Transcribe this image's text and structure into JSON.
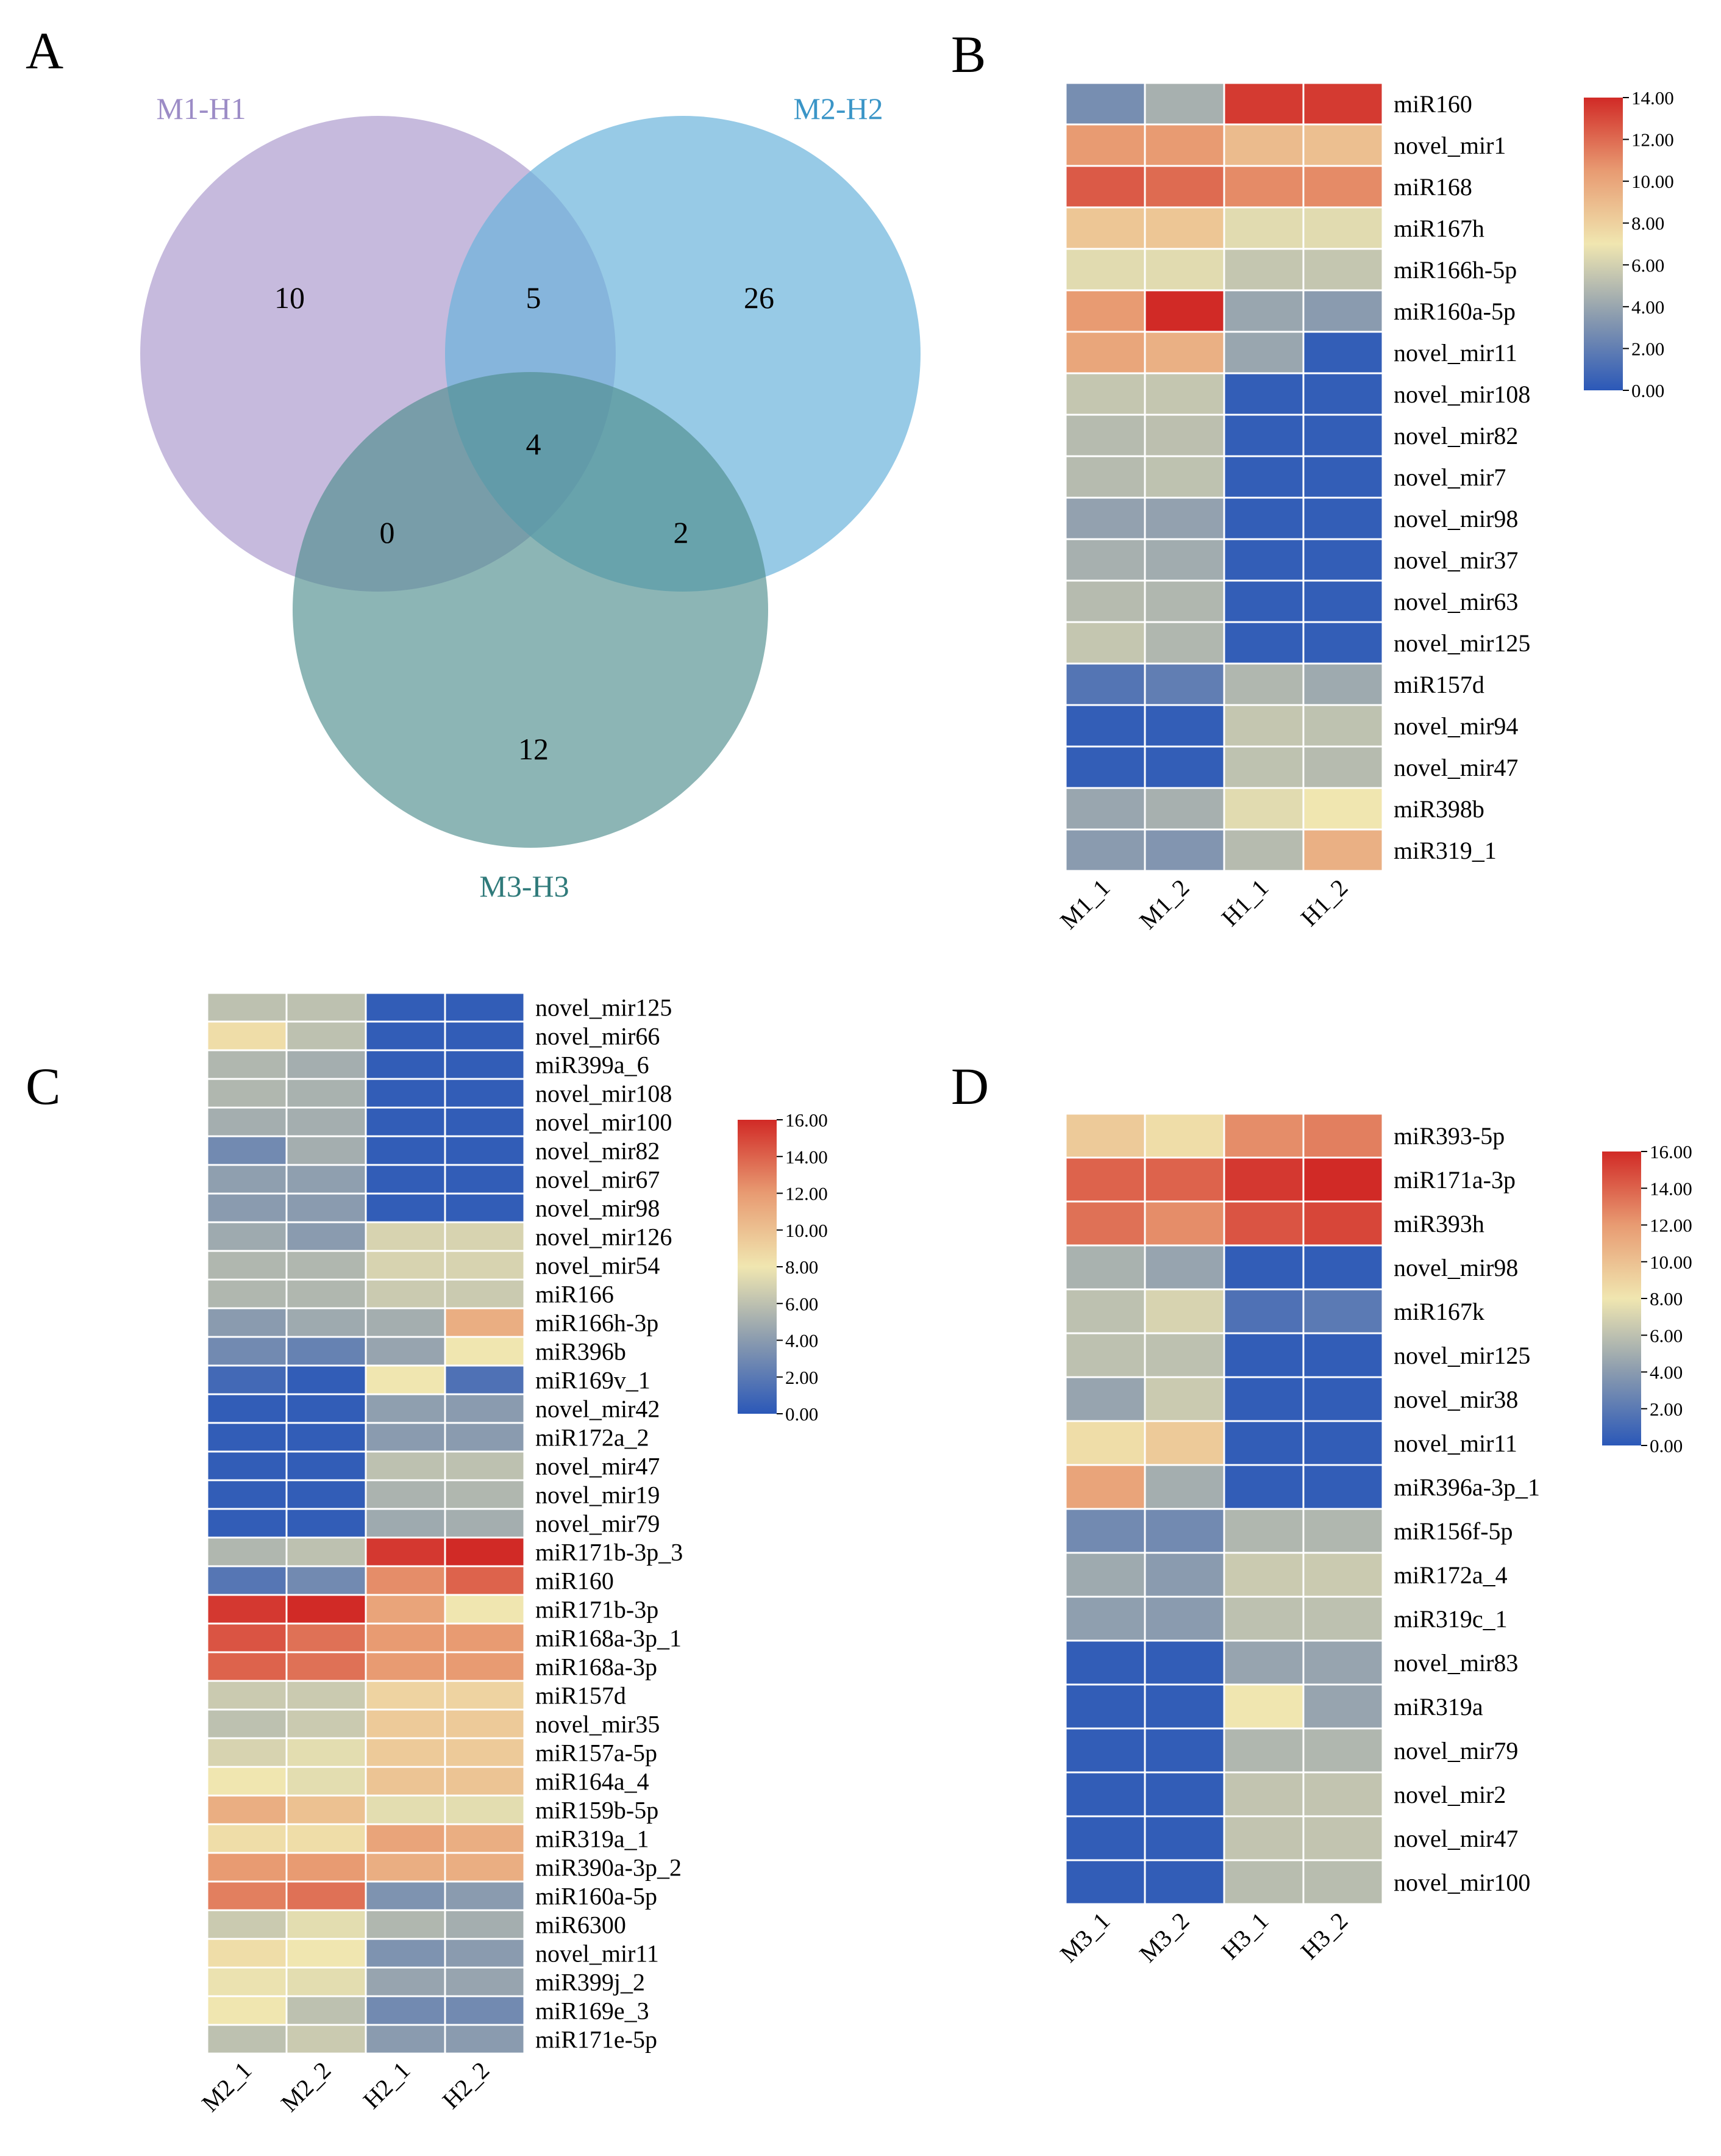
{
  "chart_data": [
    {
      "panel": "A",
      "type": "venn",
      "sets": [
        {
          "name": "M1-H1",
          "color": "#B3A3D1",
          "label_color": "#9C8CC6"
        },
        {
          "name": "M2-H2",
          "color": "#6BB3DC",
          "label_color": "#3A95C7"
        },
        {
          "name": "M3-H3",
          "color": "#4E8D8E",
          "label_color": "#2F7A7A"
        }
      ],
      "regions": {
        "only_1": 10,
        "only_2": 26,
        "only_3": 12,
        "1_2": 5,
        "1_3": 0,
        "2_3": 2,
        "1_2_3": 4
      }
    },
    {
      "panel": "B",
      "type": "heatmap",
      "columns": [
        "M1_1",
        "M1_2",
        "H1_1",
        "H1_2"
      ],
      "rows": [
        "miR160",
        "novel_mir1",
        "miR168",
        "miR167h",
        "miR166h-5p",
        "miR160a-5p",
        "novel_mir11",
        "novel_mir108",
        "novel_mir82",
        "novel_mir7",
        "novel_mir98",
        "novel_mir37",
        "novel_mir63",
        "novel_mir125",
        "miR157d",
        "novel_mir94",
        "novel_mir47",
        "miR398b",
        "miR319_1"
      ],
      "values": [
        [
          2.8,
          4.5,
          13.5,
          13.5
        ],
        [
          10.5,
          10.5,
          9.0,
          8.8
        ],
        [
          12.5,
          12.0,
          11.0,
          11.0
        ],
        [
          8.5,
          8.5,
          6.5,
          6.5
        ],
        [
          6.5,
          6.5,
          5.5,
          5.5
        ],
        [
          10.5,
          14.0,
          4.0,
          3.5
        ],
        [
          10.0,
          9.5,
          4.0,
          0.3
        ],
        [
          5.5,
          5.5,
          0.3,
          0.3
        ],
        [
          5.0,
          5.2,
          0.3,
          0.3
        ],
        [
          5.0,
          5.3,
          0.3,
          0.3
        ],
        [
          3.8,
          3.8,
          0.3,
          0.3
        ],
        [
          4.5,
          4.3,
          0.3,
          0.3
        ],
        [
          5.0,
          4.8,
          0.3,
          0.3
        ],
        [
          5.5,
          4.8,
          0.3,
          0.3
        ],
        [
          1.5,
          2.0,
          4.8,
          4.2
        ],
        [
          0.3,
          0.3,
          5.5,
          5.3
        ],
        [
          0.3,
          0.3,
          5.3,
          5.0
        ],
        [
          4.0,
          4.5,
          6.5,
          7.0
        ],
        [
          3.5,
          3.2,
          5.0,
          9.5
        ]
      ],
      "colorbar": {
        "min": 0,
        "max": 14,
        "ticks": [
          "0.00",
          "2.00",
          "4.00",
          "6.00",
          "8.00",
          "10.00",
          "12.00",
          "14.00"
        ]
      }
    },
    {
      "panel": "C",
      "type": "heatmap",
      "columns": [
        "M2_1",
        "M2_2",
        "H2_1",
        "H2_2"
      ],
      "rows": [
        "novel_mir125",
        "novel_mir66",
        "miR399a_6",
        "novel_mir108",
        "novel_mir100",
        "novel_mir82",
        "novel_mir67",
        "novel_mir98",
        "novel_mir126",
        "novel_mir54",
        "miR166",
        "miR166h-3p",
        "miR396b",
        "miR169v_1",
        "novel_mir42",
        "miR172a_2",
        "novel_mir47",
        "novel_mir19",
        "novel_mir79",
        "miR171b-3p_3",
        "miR160",
        "miR171b-3p",
        "miR168a-3p_1",
        "miR168a-3p",
        "miR157d",
        "novel_mir35",
        "miR157a-5p",
        "miR164a_4",
        "miR159b-5p",
        "miR319a_1",
        "miR390a-3p_2",
        "miR160a-5p",
        "miR6300",
        "novel_mir11",
        "miR399j_2",
        "miR169e_3",
        "miR171e-5p"
      ],
      "values": [
        [
          6.0,
          6.0,
          0.3,
          0.3
        ],
        [
          8.5,
          6.0,
          0.3,
          0.3
        ],
        [
          5.5,
          5.0,
          0.3,
          0.3
        ],
        [
          5.5,
          5.2,
          0.3,
          0.3
        ],
        [
          5.0,
          5.0,
          0.3,
          0.3
        ],
        [
          3.0,
          5.0,
          0.3,
          0.3
        ],
        [
          4.2,
          4.2,
          0.3,
          0.3
        ],
        [
          4.0,
          4.0,
          0.3,
          0.3
        ],
        [
          4.8,
          4.0,
          7.0,
          7.0
        ],
        [
          5.5,
          5.5,
          7.0,
          7.0
        ],
        [
          5.5,
          5.5,
          6.5,
          6.5
        ],
        [
          4.0,
          4.8,
          5.0,
          11.0
        ],
        [
          3.0,
          2.5,
          4.5,
          8.0
        ],
        [
          1.0,
          0.3,
          8.0,
          1.5
        ],
        [
          0.3,
          0.3,
          4.2,
          4.0
        ],
        [
          0.3,
          0.3,
          4.0,
          4.0
        ],
        [
          0.3,
          0.3,
          6.0,
          6.0
        ],
        [
          0.3,
          0.3,
          5.3,
          5.5
        ],
        [
          0.3,
          0.3,
          4.8,
          5.0
        ],
        [
          5.5,
          6.0,
          15.5,
          16.0
        ],
        [
          1.8,
          3.0,
          12.5,
          14.0
        ],
        [
          15.5,
          16.0,
          11.5,
          8.0
        ],
        [
          14.5,
          13.5,
          12.0,
          12.0
        ],
        [
          14.0,
          13.5,
          12.0,
          12.0
        ],
        [
          6.5,
          6.5,
          9.0,
          9.0
        ],
        [
          6.0,
          6.5,
          9.5,
          9.5
        ],
        [
          7.0,
          7.5,
          9.5,
          9.5
        ],
        [
          8.0,
          7.5,
          9.8,
          9.8
        ],
        [
          11.0,
          10.0,
          7.5,
          7.5
        ],
        [
          8.5,
          8.5,
          11.5,
          11.0
        ],
        [
          12.0,
          12.0,
          11.0,
          11.0
        ],
        [
          13.0,
          13.5,
          3.5,
          4.0
        ],
        [
          6.5,
          7.5,
          5.5,
          5.0
        ],
        [
          8.5,
          8.0,
          3.5,
          4.0
        ],
        [
          7.8,
          7.5,
          4.5,
          4.5
        ],
        [
          8.0,
          6.0,
          3.0,
          3.0
        ],
        [
          6.0,
          6.5,
          4.0,
          4.0
        ]
      ],
      "colorbar": {
        "min": 0,
        "max": 16,
        "ticks": [
          "0.00",
          "2.00",
          "4.00",
          "6.00",
          "8.00",
          "10.00",
          "12.00",
          "14.00",
          "16.00"
        ]
      }
    },
    {
      "panel": "D",
      "type": "heatmap",
      "columns": [
        "M3_1",
        "M3_2",
        "H3_1",
        "H3_2"
      ],
      "rows": [
        "miR393-5p",
        "miR171a-3p",
        "miR393h",
        "novel_mir98",
        "miR167k",
        "novel_mir125",
        "novel_mir38",
        "novel_mir11",
        "miR396a-3p_1",
        "miR156f-5p",
        "miR172a_4",
        "miR319c_1",
        "novel_mir83",
        "miR319a",
        "novel_mir79",
        "novel_mir2",
        "novel_mir47",
        "novel_mir100"
      ],
      "values": [
        [
          9.5,
          8.5,
          12.5,
          13.0
        ],
        [
          14.0,
          14.0,
          15.5,
          16.0
        ],
        [
          13.5,
          12.5,
          14.5,
          15.0
        ],
        [
          5.2,
          4.5,
          0.3,
          0.3
        ],
        [
          6.0,
          7.0,
          1.5,
          2.0
        ],
        [
          6.0,
          6.0,
          0.3,
          0.3
        ],
        [
          4.5,
          6.5,
          0.3,
          0.3
        ],
        [
          8.5,
          9.5,
          0.3,
          0.3
        ],
        [
          11.5,
          5.0,
          0.3,
          0.3
        ],
        [
          3.0,
          3.0,
          5.5,
          5.5
        ],
        [
          4.8,
          4.0,
          6.5,
          6.5
        ],
        [
          4.2,
          4.0,
          6.0,
          6.0
        ],
        [
          0.3,
          0.3,
          4.5,
          4.5
        ],
        [
          0.3,
          0.3,
          8.0,
          4.5
        ],
        [
          0.3,
          0.3,
          5.5,
          5.5
        ],
        [
          0.3,
          0.3,
          6.2,
          6.2
        ],
        [
          0.3,
          0.3,
          6.2,
          6.2
        ],
        [
          0.3,
          0.3,
          5.8,
          5.8
        ]
      ],
      "colorbar": {
        "min": 0,
        "max": 16,
        "ticks": [
          "0.00",
          "2.00",
          "4.00",
          "6.00",
          "8.00",
          "10.00",
          "12.00",
          "14.00",
          "16.00"
        ]
      }
    }
  ],
  "palette": {
    "low": "#2B58B8",
    "midlow": "#8A9BAF",
    "mid": "#F0E6B0",
    "midhigh": "#E89B72",
    "high": "#D12A26"
  }
}
